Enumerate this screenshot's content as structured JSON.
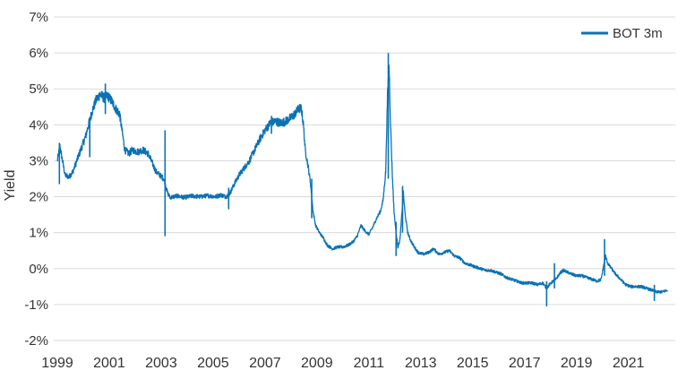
{
  "chart_data": {
    "type": "line",
    "title": "",
    "xlabel": "",
    "ylabel": "Yield",
    "x_ticks": [
      "1999",
      "2001",
      "2003",
      "2005",
      "2007",
      "2009",
      "2011",
      "2013",
      "2015",
      "2017",
      "2019",
      "2021"
    ],
    "y_ticks": [
      "7%",
      "6%",
      "5%",
      "4%",
      "3%",
      "2%",
      "1%",
      "0%",
      "-1%",
      "-2%"
    ],
    "xlim": [
      1999.0,
      2022.6
    ],
    "ylim": [
      -2,
      7
    ],
    "grid": "horizontal",
    "legend": {
      "position": "top-right"
    },
    "color": "#1f77b4",
    "series": [
      {
        "name": "BOT 3m",
        "color": "#0b72b5",
        "points": [
          [
            1999.0,
            3.0
          ],
          [
            1999.1,
            3.4
          ],
          [
            1999.2,
            3.0
          ],
          [
            1999.3,
            2.6
          ],
          [
            1999.45,
            2.55
          ],
          [
            1999.6,
            2.7
          ],
          [
            1999.75,
            3.0
          ],
          [
            1999.9,
            3.3
          ],
          [
            2000.0,
            3.5
          ],
          [
            2000.1,
            3.7
          ],
          [
            2000.2,
            4.0
          ],
          [
            2000.35,
            4.4
          ],
          [
            2000.5,
            4.7
          ],
          [
            2000.65,
            4.85
          ],
          [
            2000.8,
            4.75
          ],
          [
            2000.95,
            4.8
          ],
          [
            2001.1,
            4.65
          ],
          [
            2001.25,
            4.45
          ],
          [
            2001.4,
            4.3
          ],
          [
            2001.5,
            3.8
          ],
          [
            2001.6,
            3.3
          ],
          [
            2001.75,
            3.2
          ],
          [
            2001.9,
            3.3
          ],
          [
            2002.1,
            3.25
          ],
          [
            2002.3,
            3.3
          ],
          [
            2002.5,
            3.2
          ],
          [
            2002.65,
            2.95
          ],
          [
            2002.8,
            2.7
          ],
          [
            2002.95,
            2.6
          ],
          [
            2003.1,
            2.5
          ],
          [
            2003.25,
            2.1
          ],
          [
            2003.35,
            1.98
          ],
          [
            2003.6,
            2.02
          ],
          [
            2003.9,
            1.98
          ],
          [
            2004.2,
            2.02
          ],
          [
            2004.5,
            2.0
          ],
          [
            2004.8,
            2.03
          ],
          [
            2005.1,
            2.0
          ],
          [
            2005.3,
            2.05
          ],
          [
            2005.5,
            2.0
          ],
          [
            2005.65,
            2.1
          ],
          [
            2005.85,
            2.4
          ],
          [
            2006.0,
            2.6
          ],
          [
            2006.2,
            2.8
          ],
          [
            2006.4,
            3.0
          ],
          [
            2006.6,
            3.3
          ],
          [
            2006.8,
            3.6
          ],
          [
            2007.0,
            3.85
          ],
          [
            2007.2,
            4.05
          ],
          [
            2007.4,
            4.1
          ],
          [
            2007.6,
            4.05
          ],
          [
            2007.8,
            4.1
          ],
          [
            2008.0,
            4.2
          ],
          [
            2008.15,
            4.3
          ],
          [
            2008.3,
            4.45
          ],
          [
            2008.4,
            4.45
          ],
          [
            2008.48,
            4.0
          ],
          [
            2008.55,
            3.3
          ],
          [
            2008.65,
            2.9
          ],
          [
            2008.75,
            2.4
          ],
          [
            2008.85,
            1.6
          ],
          [
            2008.95,
            1.2
          ],
          [
            2009.1,
            1.0
          ],
          [
            2009.25,
            0.85
          ],
          [
            2009.4,
            0.65
          ],
          [
            2009.6,
            0.55
          ],
          [
            2009.8,
            0.6
          ],
          [
            2010.0,
            0.6
          ],
          [
            2010.2,
            0.65
          ],
          [
            2010.4,
            0.75
          ],
          [
            2010.55,
            0.9
          ],
          [
            2010.7,
            1.2
          ],
          [
            2010.85,
            1.05
          ],
          [
            2011.0,
            0.95
          ],
          [
            2011.15,
            1.15
          ],
          [
            2011.3,
            1.4
          ],
          [
            2011.45,
            1.6
          ],
          [
            2011.55,
            1.9
          ],
          [
            2011.65,
            2.7
          ],
          [
            2011.72,
            4.8
          ],
          [
            2011.78,
            5.7
          ],
          [
            2011.83,
            4.2
          ],
          [
            2011.9,
            2.7
          ],
          [
            2011.97,
            1.6
          ],
          [
            2012.05,
            1.0
          ],
          [
            2012.12,
            0.6
          ],
          [
            2012.2,
            0.8
          ],
          [
            2012.28,
            1.6
          ],
          [
            2012.33,
            2.1
          ],
          [
            2012.4,
            1.5
          ],
          [
            2012.5,
            1.0
          ],
          [
            2012.6,
            0.8
          ],
          [
            2012.75,
            0.6
          ],
          [
            2012.9,
            0.45
          ],
          [
            2013.1,
            0.4
          ],
          [
            2013.3,
            0.45
          ],
          [
            2013.5,
            0.55
          ],
          [
            2013.7,
            0.4
          ],
          [
            2013.9,
            0.45
          ],
          [
            2014.1,
            0.5
          ],
          [
            2014.3,
            0.35
          ],
          [
            2014.5,
            0.3
          ],
          [
            2014.7,
            0.15
          ],
          [
            2014.9,
            0.1
          ],
          [
            2015.1,
            0.05
          ],
          [
            2015.3,
            0.0
          ],
          [
            2015.5,
            -0.05
          ],
          [
            2015.7,
            -0.05
          ],
          [
            2015.9,
            -0.1
          ],
          [
            2016.1,
            -0.15
          ],
          [
            2016.3,
            -0.25
          ],
          [
            2016.5,
            -0.3
          ],
          [
            2016.7,
            -0.35
          ],
          [
            2016.9,
            -0.4
          ],
          [
            2017.1,
            -0.4
          ],
          [
            2017.3,
            -0.4
          ],
          [
            2017.5,
            -0.45
          ],
          [
            2017.7,
            -0.4
          ],
          [
            2017.85,
            -0.55
          ],
          [
            2017.95,
            -0.45
          ],
          [
            2018.1,
            -0.35
          ],
          [
            2018.2,
            -0.3
          ],
          [
            2018.3,
            -0.2
          ],
          [
            2018.4,
            -0.1
          ],
          [
            2018.5,
            -0.05
          ],
          [
            2018.65,
            -0.1
          ],
          [
            2018.8,
            -0.15
          ],
          [
            2019.0,
            -0.2
          ],
          [
            2019.2,
            -0.2
          ],
          [
            2019.4,
            -0.25
          ],
          [
            2019.6,
            -0.3
          ],
          [
            2019.8,
            -0.35
          ],
          [
            2019.95,
            -0.3
          ],
          [
            2020.05,
            0.1
          ],
          [
            2020.12,
            0.35
          ],
          [
            2020.2,
            0.15
          ],
          [
            2020.35,
            0.0
          ],
          [
            2020.5,
            -0.15
          ],
          [
            2020.7,
            -0.3
          ],
          [
            2020.9,
            -0.45
          ],
          [
            2021.1,
            -0.5
          ],
          [
            2021.3,
            -0.5
          ],
          [
            2021.5,
            -0.5
          ],
          [
            2021.7,
            -0.55
          ],
          [
            2021.9,
            -0.6
          ],
          [
            2022.1,
            -0.65
          ],
          [
            2022.3,
            -0.65
          ],
          [
            2022.5,
            -0.6
          ]
        ],
        "spikes": [
          [
            1999.08,
            2.35,
            3.5
          ],
          [
            2000.25,
            3.1,
            4.15
          ],
          [
            2000.85,
            4.3,
            5.15
          ],
          [
            2003.15,
            0.9,
            3.85
          ],
          [
            2005.6,
            1.65,
            2.25
          ],
          [
            2007.25,
            3.75,
            4.25
          ],
          [
            2008.8,
            1.4,
            2.5
          ],
          [
            2011.75,
            2.5,
            6.0
          ],
          [
            2012.05,
            0.35,
            1.3
          ],
          [
            2012.3,
            1.0,
            2.3
          ],
          [
            2017.85,
            -1.05,
            -0.35
          ],
          [
            2018.15,
            -0.55,
            0.15
          ],
          [
            2020.08,
            -0.2,
            0.82
          ],
          [
            2022.0,
            -0.9,
            -0.45
          ]
        ]
      }
    ]
  }
}
